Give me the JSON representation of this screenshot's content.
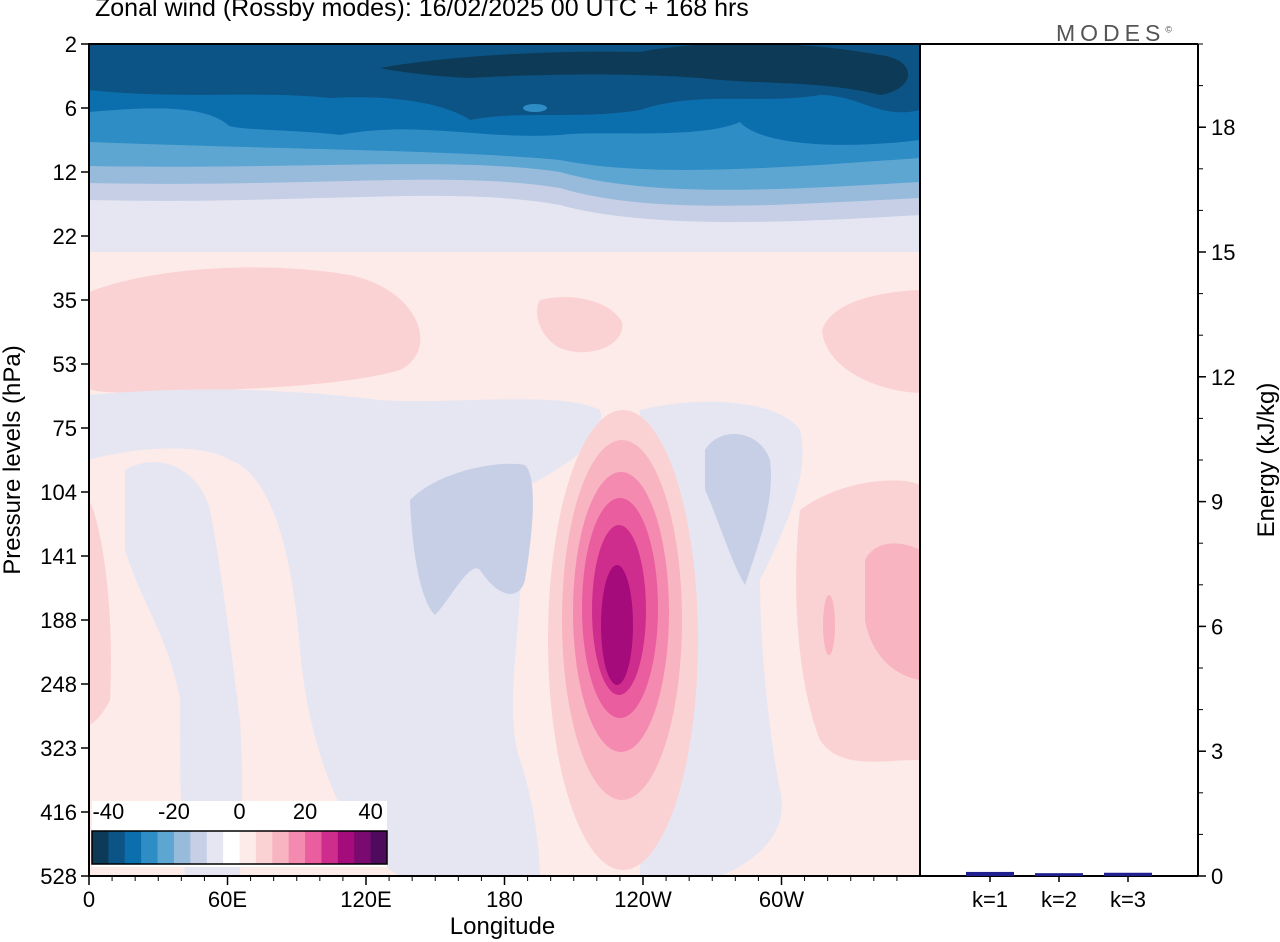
{
  "title": "Zonal wind (Rossby modes):  16/02/2025  00 UTC  + 168 hrs",
  "logo": "MODES",
  "logo_mark": "©",
  "colors": {
    "scale": [
      "#0d3b57",
      "#0c5485",
      "#0c6fad",
      "#2f8dc6",
      "#5ea6d2",
      "#98bbdc",
      "#c6cfe6",
      "#e6e6f2",
      "#ffffff",
      "#fdebe9",
      "#fbd2d3",
      "#f8b4c0",
      "#f48ab0",
      "#ea5d9f",
      "#cf2d8e",
      "#a50b7b",
      "#7a0a70",
      "#4e0a5c"
    ],
    "bar": "#1f1f8f"
  },
  "chart_data": [
    {
      "type": "heatmap",
      "title": "Zonal wind (Rossby modes):  16/02/2025  00 UTC  + 168 hrs",
      "xlabel": "Longitude",
      "ylabel": "Pressure levels (hPa)",
      "x_ticks": [
        "0",
        "60E",
        "120E",
        "180",
        "120W",
        "60W"
      ],
      "y_ticks": [
        "2",
        "6",
        "12",
        "22",
        "35",
        "53",
        "75",
        "104",
        "141",
        "188",
        "248",
        "323",
        "416",
        "528"
      ],
      "colorbar": {
        "ticks": [
          "-40",
          "-20",
          "0",
          "20",
          "40"
        ],
        "range": [
          -45,
          45
        ]
      },
      "features": [
        {
          "name": "stratospheric easterlies",
          "lon": [
            0,
            360
          ],
          "level": [
            2,
            12
          ],
          "value": -40
        },
        {
          "name": "upper weak easterlies",
          "lon": [
            0,
            360
          ],
          "level": [
            12,
            22
          ],
          "value": -15
        },
        {
          "name": "westerly maximum 1",
          "lon": [
            0,
            145
          ],
          "level": [
            22,
            60
          ],
          "value": 7
        },
        {
          "name": "westerly maximum 2",
          "lon": [
            195,
            230
          ],
          "level": [
            30,
            50
          ],
          "value": 7
        },
        {
          "name": "westerly maximum 3",
          "lon": [
            315,
            360
          ],
          "level": [
            30,
            60
          ],
          "value": 7
        },
        {
          "name": "westerly jet",
          "lon": [
            205,
            260
          ],
          "level": [
            104,
            416
          ],
          "value": 40
        },
        {
          "name": "westerly region east",
          "lon": [
            300,
            360
          ],
          "level": [
            100,
            416
          ],
          "value": 10
        },
        {
          "name": "easterly region 1",
          "lon": [
            15,
            65
          ],
          "level": [
            90,
            528
          ],
          "value": -5
        },
        {
          "name": "easterly region 2",
          "lon": [
            105,
            200
          ],
          "level": [
            75,
            528
          ],
          "value": -10
        },
        {
          "name": "easterly region 3",
          "lon": [
            245,
            305
          ],
          "level": [
            75,
            528
          ],
          "value": -10
        }
      ]
    },
    {
      "type": "bar",
      "categories": [
        "k=1",
        "k=2",
        "k=3"
      ],
      "values": [
        0.05,
        0.02,
        0.03
      ],
      "ylabel": "Energy (kJ/kg)",
      "ylim": [
        0,
        20
      ],
      "y_ticks": [
        "0",
        "3",
        "6",
        "9",
        "12",
        "15",
        "18"
      ]
    }
  ]
}
